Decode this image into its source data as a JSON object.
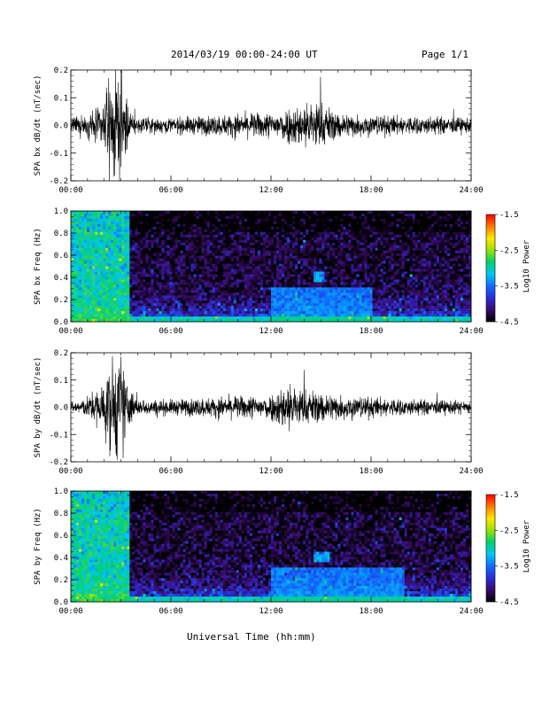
{
  "header": {
    "title": "2014/03/19  00:00-24:00 UT",
    "page": "Page 1/1"
  },
  "xlabel": "Universal Time (hh:mm)",
  "colorbar": {
    "label": "Log10 Power",
    "ticks": [
      "-1.5",
      "-2.5",
      "-3.5",
      "-4.5"
    ],
    "vmin": -4.5,
    "vmax": -1.5,
    "colors": [
      "#000000",
      "#3a0b6b",
      "#2a2bd6",
      "#0f6cff",
      "#00c8f0",
      "#00d070",
      "#9be000",
      "#ffe600",
      "#ff7a00",
      "#ff0000"
    ]
  },
  "chart_data": [
    {
      "type": "line",
      "ylabel": "SPA bx dB/dt (nT/sec)",
      "xlim": [
        0,
        24
      ],
      "ylim": [
        -0.2,
        0.2
      ],
      "xticks": [
        "00:00",
        "06:00",
        "12:00",
        "18:00",
        "24:00"
      ],
      "yticks": [
        "0.2",
        "0.1",
        "0.0",
        "-0.1",
        "-0.2"
      ],
      "envelope": {
        "x_hours": [
          0,
          1,
          2,
          2.5,
          3,
          3.5,
          4,
          6,
          9,
          12,
          14.7,
          16,
          18,
          21,
          24
        ],
        "amplitude": [
          0.03,
          0.04,
          0.09,
          0.2,
          0.2,
          0.06,
          0.03,
          0.03,
          0.04,
          0.05,
          0.1,
          0.05,
          0.04,
          0.035,
          0.03
        ]
      }
    },
    {
      "type": "heatmap",
      "ylabel": "SPA bx Freq (Hz)",
      "xlim": [
        0,
        24
      ],
      "ylim": [
        0,
        1
      ],
      "xticks": [
        "00:00",
        "06:00",
        "12:00",
        "18:00",
        "24:00"
      ],
      "yticks": [
        "1.0",
        "0.8",
        "0.6",
        "0.4",
        "0.2",
        "0.0"
      ],
      "features": [
        {
          "time_h": [
            0,
            3.5
          ],
          "freq_hz": [
            0,
            1.0
          ],
          "log_power": -2.5
        },
        {
          "time_h": [
            14.5,
            15.2
          ],
          "freq_hz": [
            0.35,
            0.45
          ],
          "log_power": -3.0
        },
        {
          "time_h": [
            12,
            18
          ],
          "freq_hz": [
            0,
            0.3
          ],
          "log_power": -3.2
        },
        {
          "time_h": [
            0,
            24
          ],
          "freq_hz": [
            0,
            0.05
          ],
          "log_power": -2.8
        }
      ]
    },
    {
      "type": "line",
      "ylabel": "SPA by dB/dt (nT/sec)",
      "xlim": [
        0,
        24
      ],
      "ylim": [
        -0.2,
        0.2
      ],
      "xticks": [
        "00:00",
        "06:00",
        "12:00",
        "18:00",
        "24:00"
      ],
      "yticks": [
        "0.2",
        "0.1",
        "0.0",
        "-0.1",
        "-0.2"
      ],
      "envelope": {
        "x_hours": [
          0,
          1,
          2,
          2.5,
          3,
          3.5,
          4,
          6,
          9,
          12,
          13,
          14,
          16,
          18,
          21,
          24
        ],
        "amplitude": [
          0.02,
          0.04,
          0.1,
          0.2,
          0.2,
          0.08,
          0.03,
          0.03,
          0.04,
          0.05,
          0.1,
          0.07,
          0.05,
          0.04,
          0.03,
          0.025
        ]
      }
    },
    {
      "type": "heatmap",
      "ylabel": "SPA by Freq (Hz)",
      "xlim": [
        0,
        24
      ],
      "ylim": [
        0,
        1
      ],
      "xticks": [
        "00:00",
        "06:00",
        "12:00",
        "18:00",
        "24:00"
      ],
      "yticks": [
        "1.0",
        "0.8",
        "0.6",
        "0.4",
        "0.2",
        "0.0"
      ],
      "features": [
        {
          "time_h": [
            0,
            3.5
          ],
          "freq_hz": [
            0,
            1.0
          ],
          "log_power": -2.5
        },
        {
          "time_h": [
            14.5,
            15.5
          ],
          "freq_hz": [
            0.35,
            0.45
          ],
          "log_power": -3.0
        },
        {
          "time_h": [
            12,
            20
          ],
          "freq_hz": [
            0,
            0.3
          ],
          "log_power": -3.2
        },
        {
          "time_h": [
            0,
            24
          ],
          "freq_hz": [
            0,
            0.05
          ],
          "log_power": -2.8
        }
      ]
    }
  ]
}
